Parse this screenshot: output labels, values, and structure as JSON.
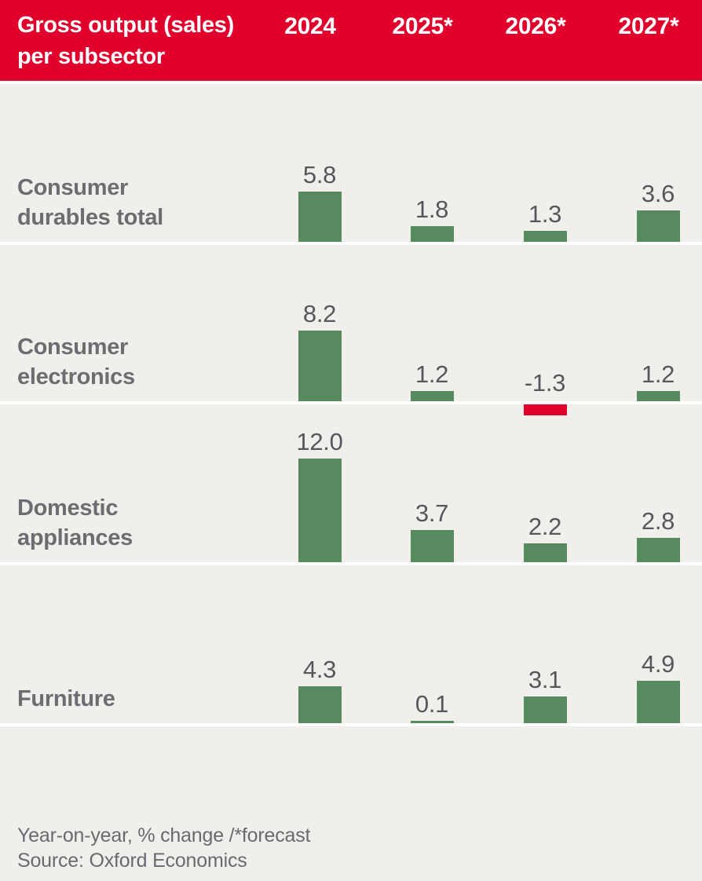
{
  "title": {
    "line1": "Gross output (sales)",
    "line2": "per subsector"
  },
  "footer": {
    "note": "Year-on-year, % change /*forecast",
    "source": "Source: Oxford Economics"
  },
  "colors": {
    "header_bg": "#e0002b",
    "header_text": "#ffffff",
    "positive_bar": "#588a60",
    "negative_bar": "#df0128",
    "row_bg": "#f1efec",
    "separator": "#ffffff",
    "label_text": "#6e6c70",
    "value_text": "#59565b"
  },
  "chart_data": {
    "type": "bar",
    "title": "Gross output (sales) per subsector",
    "unit": "Year-on-year, % change",
    "note": "Year-on-year, % change /*forecast",
    "source": "Source: Oxford Economics",
    "categories": [
      "2024",
      "2025*",
      "2026*",
      "2027*"
    ],
    "series": [
      {
        "name": "Consumer durables total",
        "label_lines": [
          "Consumer",
          "durables total"
        ],
        "values": [
          5.8,
          1.8,
          1.3,
          3.6
        ]
      },
      {
        "name": "Consumer electronics",
        "label_lines": [
          "Consumer",
          "electronics"
        ],
        "values": [
          8.2,
          1.2,
          -1.3,
          1.2
        ]
      },
      {
        "name": "Domestic appliances",
        "label_lines": [
          "Domestic",
          "appliances"
        ],
        "values": [
          12.0,
          3.7,
          2.2,
          2.8
        ]
      },
      {
        "name": "Furniture",
        "label_lines": [
          "Furniture"
        ],
        "values": [
          4.3,
          0.1,
          3.1,
          4.9
        ]
      }
    ],
    "layout_hints": {
      "orientation": "small-multiple rows, baseline per row",
      "positive_color": "green",
      "negative_color": "red",
      "value_labels": "above each bar, one decimal",
      "grid": false,
      "legend": "none"
    }
  }
}
